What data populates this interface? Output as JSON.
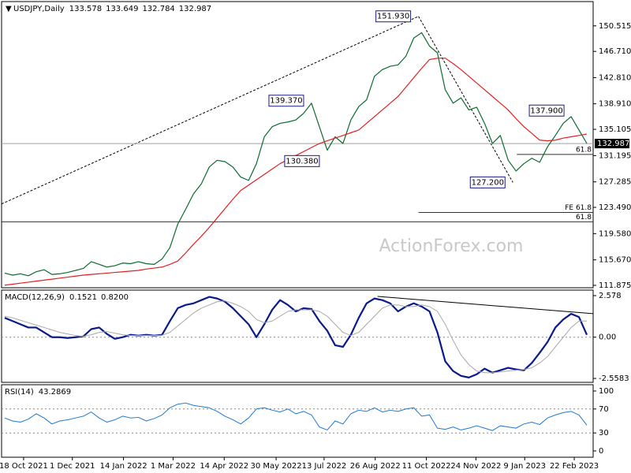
{
  "chart_data": [
    {
      "type": "line",
      "symbol": "USDJPY,Daily",
      "readout": [
        "133.578",
        "133.649",
        "132.784",
        "132.987"
      ],
      "watermark": "ActionForex.com",
      "x": [
        0,
        1,
        2,
        3,
        4,
        5,
        6,
        7,
        8,
        9,
        10,
        11,
        12,
        13,
        14,
        15,
        16,
        17,
        18,
        19,
        20,
        21,
        22,
        23,
        24,
        25,
        26,
        27,
        28,
        29,
        30,
        31,
        32,
        33,
        34,
        35,
        36,
        37,
        38,
        39,
        40,
        41,
        42,
        43,
        44,
        45,
        46,
        47,
        48,
        49,
        50,
        51,
        52,
        53,
        54,
        55,
        56,
        57,
        58,
        59,
        60,
        61,
        62,
        63,
        64,
        65,
        66,
        67,
        68,
        69,
        70,
        71,
        72,
        73,
        74
      ],
      "series": [
        {
          "color": "#0b6b2e",
          "width": 1.2,
          "values": [
            113.7,
            113.4,
            113.6,
            113.3,
            113.9,
            114.2,
            113.5,
            113.6,
            113.8,
            114.1,
            114.4,
            115.4,
            115.0,
            114.6,
            114.8,
            115.2,
            115.1,
            115.4,
            115.1,
            115.0,
            115.8,
            117.5,
            121,
            123.2,
            125.5,
            127,
            129.5,
            130.5,
            130.3,
            129.5,
            128,
            127.5,
            130,
            134,
            135.5,
            136,
            136.2,
            136.5,
            137.5,
            139,
            135.5,
            132,
            134,
            133,
            136.5,
            138.5,
            139.5,
            143,
            144,
            144.5,
            144.7,
            146,
            148.7,
            149.5,
            147.5,
            146.5,
            141,
            139,
            139.8,
            138,
            138.4,
            136,
            133,
            134.2,
            130.5,
            128.9,
            130,
            130.8,
            130.2,
            132.5,
            134.2,
            136,
            137,
            135,
            133
          ]
        },
        {
          "color": "#e02020",
          "width": 1.2,
          "values": [
            111.9,
            112.05,
            112.2,
            112.35,
            112.5,
            112.65,
            112.8,
            112.95,
            113.1,
            113.25,
            113.4,
            113.5,
            113.6,
            113.7,
            113.8,
            113.9,
            114.0,
            114.1,
            114.3,
            114.45,
            114.6,
            115.0,
            115.5,
            116.7,
            118.0,
            119.2,
            120.5,
            121.9,
            123.3,
            124.7,
            126.0,
            126.8,
            127.6,
            128.4,
            129.2,
            130.0,
            130.6,
            131.2,
            131.8,
            132.4,
            133.0,
            133.4,
            133.8,
            134.2,
            134.6,
            135.0,
            136.0,
            137.0,
            138.0,
            139.0,
            140.0,
            141.4,
            142.8,
            144.2,
            145.5,
            145.7,
            145.7,
            144.9,
            144.0,
            143.0,
            142.0,
            141.0,
            140.0,
            139.0,
            138.0,
            136.7,
            135.5,
            134.5,
            133.5,
            133.4,
            133.5,
            133.8,
            134.0,
            134.2,
            134.4
          ]
        }
      ],
      "xlim": [
        -0.4,
        74.8
      ],
      "ylim": [
        111.52,
        154.13
      ],
      "yticks": [
        150.515,
        {
          "value": 146.71,
          "label": "146.710"
        },
        {
          "value": 142.81,
          "label": "142.810"
        },
        {
          "value": 138.91,
          "label": "138.910"
        },
        135.105,
        131.195,
        127.285,
        {
          "value": 123.49,
          "label": "123.490"
        },
        {
          "value": 119.58,
          "label": "119.580"
        },
        {
          "value": 115.67,
          "label": "115.670"
        },
        111.875
      ],
      "last_price": 132.987,
      "annotations": [
        {
          "value": 151.93,
          "label": "151.930",
          "x": 52.6
        },
        {
          "value": 139.37,
          "label": "139.370",
          "x": 39.0
        },
        {
          "value": 130.38,
          "label": "130.380",
          "x": 41.0
        },
        {
          "value": 127.2,
          "label": "127.200",
          "x": 64.6
        },
        {
          "value": 137.9,
          "label": "137.900",
          "x": 72.1
        }
      ],
      "levels": [
        {
          "label": "FE 61.8",
          "value": 122.73,
          "from": 52.6
        },
        {
          "label": "61.8",
          "value": 121.33,
          "from": -0.4
        },
        {
          "label": "61.8",
          "value": 131.37,
          "from": 65.1
        }
      ],
      "trendlines": [
        {
          "points": [
            [
              -0.4,
              124.0
            ],
            [
              52.6,
              151.93
            ]
          ],
          "dashed": true
        },
        {
          "points": [
            [
              52.6,
              151.93
            ],
            [
              64.6,
              127.2
            ]
          ],
          "dashed": true
        }
      ]
    },
    {
      "type": "line",
      "indicator": "MACD(12,26,9)",
      "readout": [
        "0.1521",
        "0.8200"
      ],
      "x": [
        0,
        1,
        2,
        3,
        4,
        5,
        6,
        7,
        8,
        9,
        10,
        11,
        12,
        13,
        14,
        15,
        16,
        17,
        18,
        19,
        20,
        21,
        22,
        23,
        24,
        25,
        26,
        27,
        28,
        29,
        30,
        31,
        32,
        33,
        34,
        35,
        36,
        37,
        38,
        39,
        40,
        41,
        42,
        43,
        44,
        45,
        46,
        47,
        48,
        49,
        50,
        51,
        52,
        53,
        54,
        55,
        56,
        57,
        58,
        59,
        60,
        61,
        62,
        63,
        64,
        65,
        66,
        67,
        68,
        69,
        70,
        71,
        72,
        73,
        74
      ],
      "series": [
        {
          "color": "#0a1a8c",
          "width": 2.2,
          "values": [
            1.2,
            1.0,
            0.8,
            0.6,
            0.6,
            0.3,
            0.0,
            0.0,
            -0.05,
            0.0,
            0.05,
            0.5,
            0.6,
            0.2,
            -0.1,
            0.0,
            0.15,
            0.1,
            0.15,
            0.1,
            0.15,
            1.0,
            1.8,
            2.0,
            2.1,
            2.3,
            2.5,
            2.4,
            2.2,
            1.8,
            1.3,
            0.8,
            0.0,
            0.8,
            1.7,
            2.3,
            2.0,
            1.6,
            1.8,
            1.75,
            1.0,
            0.4,
            -0.5,
            -0.6,
            0.15,
            1.2,
            2.1,
            2.4,
            2.3,
            2.1,
            1.6,
            1.9,
            2.1,
            1.9,
            1.6,
            0.3,
            -1.5,
            -2.1,
            -2.4,
            -2.5,
            -2.3,
            -1.95,
            -2.2,
            -2.05,
            -1.9,
            -2.0,
            -2.05,
            -1.6,
            -0.97,
            -0.3,
            0.6,
            1.1,
            1.45,
            1.25,
            0.15
          ]
        },
        {
          "color": "#a8a8a8",
          "width": 1,
          "values": [
            1.3,
            1.2,
            1.05,
            0.9,
            0.75,
            0.6,
            0.45,
            0.3,
            0.2,
            0.1,
            0.05,
            0.15,
            0.3,
            0.35,
            0.25,
            0.15,
            0.1,
            0.1,
            0.1,
            0.1,
            0.12,
            0.3,
            0.7,
            1.1,
            1.5,
            1.8,
            2.0,
            2.2,
            2.25,
            2.1,
            1.9,
            1.6,
            1.1,
            0.9,
            1.0,
            1.3,
            1.6,
            1.7,
            1.7,
            1.7,
            1.6,
            1.3,
            0.8,
            0.3,
            0.1,
            0.3,
            0.8,
            1.3,
            1.8,
            2.0,
            2.0,
            1.9,
            1.9,
            2.0,
            1.9,
            1.6,
            0.8,
            -0.2,
            -1.1,
            -1.7,
            -2.1,
            -2.2,
            -2.2,
            -2.15,
            -2.1,
            -2.05,
            -2.0,
            -1.9,
            -1.6,
            -1.2,
            -0.6,
            0.0,
            0.6,
            1.0,
            1.0
          ]
        }
      ],
      "xlim": [
        -0.4,
        74.8
      ],
      "ylim": [
        -2.8,
        2.92
      ],
      "yticks": [
        2.578,
        {
          "value": 0,
          "label": "0.00"
        },
        -2.5583
      ],
      "levels": [
        0
      ],
      "trendlines": [
        {
          "points": [
            [
              47.4,
              2.53
            ],
            [
              74.8,
              1.46
            ]
          ],
          "dashed": false
        }
      ]
    },
    {
      "type": "line",
      "indicator": "RSI(14)",
      "readout": [
        "43.2869"
      ],
      "x": [
        0,
        1,
        2,
        3,
        4,
        5,
        6,
        7,
        8,
        9,
        10,
        11,
        12,
        13,
        14,
        15,
        16,
        17,
        18,
        19,
        20,
        21,
        22,
        23,
        24,
        25,
        26,
        27,
        28,
        29,
        30,
        31,
        32,
        33,
        34,
        35,
        36,
        37,
        38,
        39,
        40,
        41,
        42,
        43,
        44,
        45,
        46,
        47,
        48,
        49,
        50,
        51,
        52,
        53,
        54,
        55,
        56,
        57,
        58,
        59,
        60,
        61,
        62,
        63,
        64,
        65,
        66,
        67,
        68,
        69,
        70,
        71,
        72,
        73,
        74
      ],
      "series": [
        {
          "color": "#1e78d2",
          "width": 1,
          "values": [
            55,
            50,
            48,
            53,
            62,
            55,
            45,
            50,
            52,
            55,
            58,
            65,
            55,
            48,
            52,
            58,
            55,
            56,
            50,
            54,
            60,
            72,
            78,
            80,
            76,
            74,
            72,
            66,
            58,
            52,
            45,
            55,
            70,
            72,
            68,
            65,
            70,
            62,
            66,
            60,
            40,
            35,
            50,
            45,
            62,
            68,
            66,
            72,
            65,
            68,
            66,
            70,
            72,
            58,
            60,
            38,
            36,
            40,
            35,
            38,
            42,
            38,
            34,
            42,
            40,
            38,
            45,
            48,
            44,
            55,
            60,
            64,
            66,
            60,
            43
          ]
        }
      ],
      "xlim": [
        -0.4,
        74.8
      ],
      "ylim": [
        -10.5,
        110.5
      ],
      "yticks": [
        100,
        70,
        30,
        0
      ],
      "levels": [
        70,
        30
      ],
      "xticks": [
        {
          "value": 2.4,
          "label": "18 Oct 2021"
        },
        {
          "value": 8.6,
          "label": "1 Dec 2021"
        },
        {
          "value": 15.1,
          "label": "14 Jan 2022"
        },
        {
          "value": 21.4,
          "label": "1 Mar 2022"
        },
        {
          "value": 27.9,
          "label": "14 Apr 2022"
        },
        {
          "value": 34.5,
          "label": "30 May 2022"
        },
        {
          "value": 40.6,
          "label": "13 Jul 2022"
        },
        {
          "value": 47.1,
          "label": "26 Aug 2022"
        },
        {
          "value": 53.6,
          "label": "11 Oct 2022"
        },
        {
          "value": 59.9,
          "label": "24 Nov 2022"
        },
        {
          "value": 66.1,
          "label": "9 Jan 2023"
        },
        {
          "value": 72.4,
          "label": "22 Feb 2023"
        }
      ]
    }
  ]
}
